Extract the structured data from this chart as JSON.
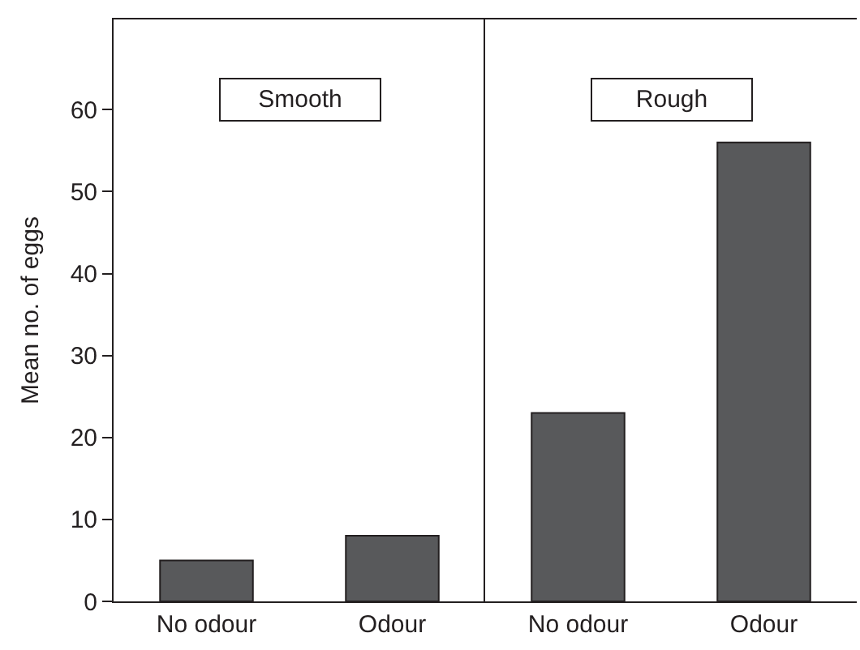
{
  "chart_data": [
    {
      "type": "bar",
      "categories": [
        "No odour",
        "Odour"
      ],
      "values": [
        5,
        8
      ],
      "color": "#58595b",
      "ylabel": "Mean no. of eggs",
      "ylim": [
        0,
        71
      ],
      "yticks": [
        0,
        10,
        20,
        30,
        40,
        50,
        60
      ],
      "annotations": [
        "Smooth"
      ]
    },
    {
      "type": "bar",
      "categories": [
        "No odour",
        "Odour"
      ],
      "values": [
        23,
        56
      ],
      "color": "#58595b",
      "ylim": [
        0,
        71
      ],
      "yticks": [
        0,
        10,
        20,
        30,
        40,
        50,
        60
      ],
      "tick_labels": "x",
      "annotations": [
        "Rough"
      ]
    }
  ]
}
